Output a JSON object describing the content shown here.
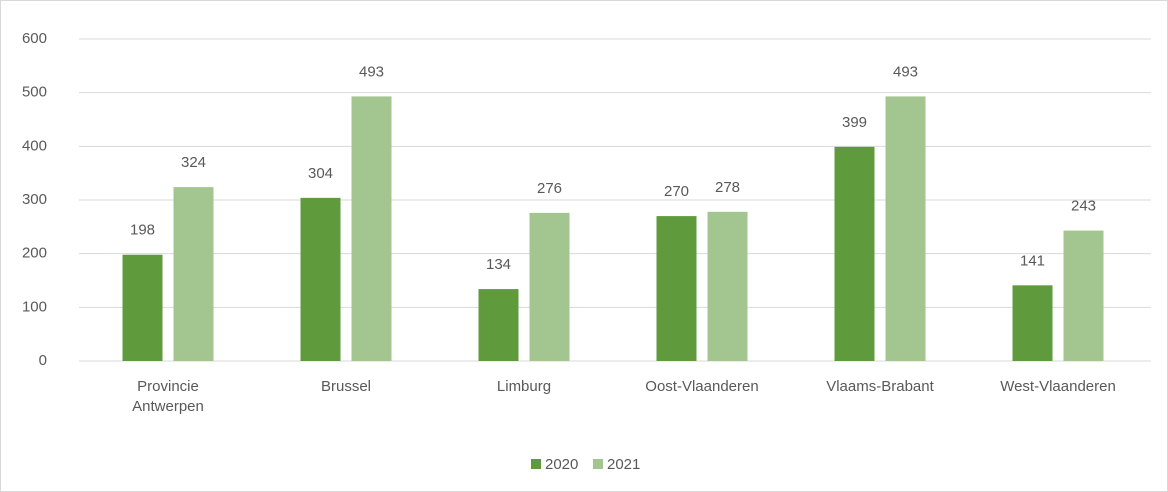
{
  "chart_data": {
    "type": "bar",
    "categories": [
      "Provincie Antwerpen",
      "Brussel",
      "Limburg",
      "Oost-Vlaanderen",
      "Vlaams-Brabant",
      "West-Vlaanderen"
    ],
    "series": [
      {
        "name": "2020",
        "color": "#5f9a3c",
        "values": [
          198,
          304,
          134,
          270,
          399,
          141
        ]
      },
      {
        "name": "2021",
        "color": "#a3c58f",
        "values": [
          324,
          493,
          276,
          278,
          493,
          243
        ]
      }
    ],
    "ylim": [
      0,
      600
    ],
    "yticks": [
      0,
      100,
      200,
      300,
      400,
      500,
      600
    ],
    "grid": true,
    "legend": "bottom"
  }
}
